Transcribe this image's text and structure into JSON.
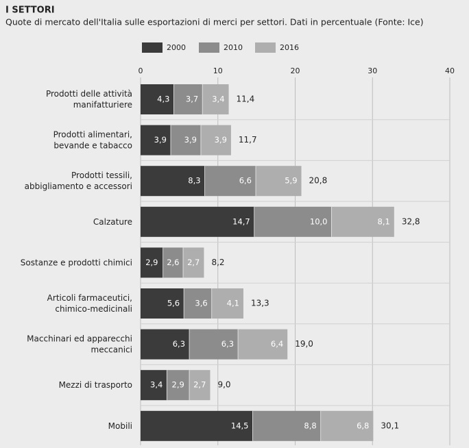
{
  "chart_data": {
    "type": "stacked-barh",
    "title": "I SETTORI",
    "subtitle": "Quote di mercato dell'Italia sulle esportazioni di merci per settori. Dati in percentuale (Fonte: Ice)",
    "categories": [
      "Prodotti delle attività\nmanifatturiere",
      "Prodotti alimentari,\nbevande e tabacco",
      "Prodotti tessili,\nabbigliamento e accessori",
      "Calzature",
      "Sostanze e prodotti chimici",
      "Articoli farmaceutici,\nchimico-medicinali",
      "Macchinari ed apparecchi\nmeccanici",
      "Mezzi di trasporto",
      "Mobili"
    ],
    "series": [
      {
        "name": "2000",
        "color": "#3b3b3b",
        "values": [
          4.3,
          3.9,
          8.3,
          14.7,
          2.9,
          5.6,
          6.3,
          3.4,
          14.5
        ],
        "value_labels": [
          "4,3",
          "3,9",
          "8,3",
          "14,7",
          "2,9",
          "5,6",
          "6,3",
          "3,4",
          "14,5"
        ]
      },
      {
        "name": "2010",
        "color": "#8c8c8c",
        "values": [
          3.7,
          3.9,
          6.6,
          10.0,
          2.6,
          3.6,
          6.3,
          2.9,
          8.8
        ],
        "value_labels": [
          "3,7",
          "3,9",
          "6,6",
          "10,0",
          "2,6",
          "3,6",
          "6,3",
          "2,9",
          "8,8"
        ]
      },
      {
        "name": "2016",
        "color": "#aeaeae",
        "values": [
          3.4,
          3.9,
          5.9,
          8.1,
          2.7,
          4.1,
          6.4,
          2.7,
          6.8
        ],
        "value_labels": [
          "3,4",
          "3,9",
          "5,9",
          "8,1",
          "2,7",
          "4,1",
          "6,4",
          "2,7",
          "6,8"
        ]
      }
    ],
    "totals": [
      11.4,
      11.7,
      20.8,
      32.8,
      8.2,
      13.3,
      19.0,
      9.0,
      30.1
    ],
    "total_labels": [
      "11,4",
      "11,7",
      "20,8",
      "32,8",
      "8,2",
      "13,3",
      "19,0",
      "9,0",
      "30,1"
    ],
    "xlim": [
      0,
      40
    ],
    "xticks": [
      0,
      10,
      20,
      30,
      40
    ],
    "grid": true
  }
}
